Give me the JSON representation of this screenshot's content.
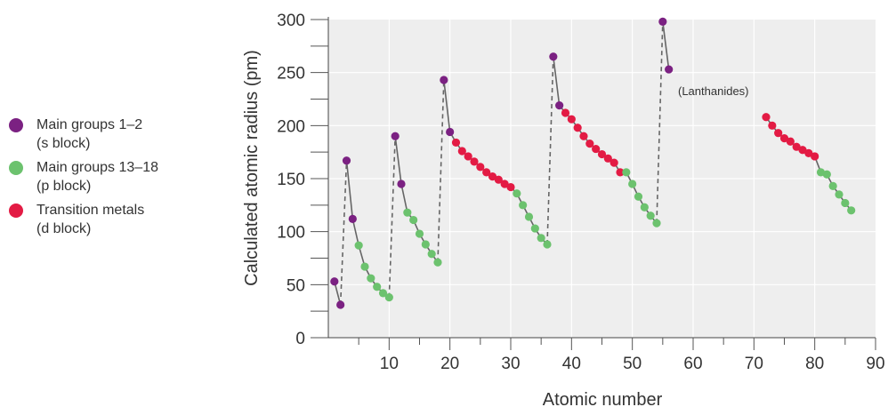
{
  "legend": [
    {
      "series": "s",
      "line1": "Main groups 1–2",
      "line2": "(s block)"
    },
    {
      "series": "p",
      "line1": "Main groups 13–18",
      "line2": "(p block)"
    },
    {
      "series": "d",
      "line1": "Transition metals",
      "line2": "(d block)"
    }
  ],
  "chart_data": {
    "type": "scatter",
    "xlabel": "Atomic number",
    "ylabel": "Calculated atomic radius (pm)",
    "xlim": [
      0,
      90
    ],
    "ylim": [
      0,
      300
    ],
    "xticks": [
      10,
      20,
      30,
      40,
      50,
      60,
      70,
      80,
      90
    ],
    "yticks": [
      0,
      50,
      100,
      150,
      200,
      250,
      300
    ],
    "grid": true,
    "annotation": "(Lanthanides)",
    "colors": {
      "s": "#7b2182",
      "p": "#6cc26e",
      "d": "#e31b44"
    },
    "points": [
      [
        1,
        53,
        "s"
      ],
      [
        2,
        31,
        "s"
      ],
      [
        3,
        167,
        "s"
      ],
      [
        4,
        112,
        "s"
      ],
      [
        5,
        87,
        "p"
      ],
      [
        6,
        67,
        "p"
      ],
      [
        7,
        56,
        "p"
      ],
      [
        8,
        48,
        "p"
      ],
      [
        9,
        42,
        "p"
      ],
      [
        10,
        38,
        "p"
      ],
      [
        11,
        190,
        "s"
      ],
      [
        12,
        145,
        "s"
      ],
      [
        13,
        118,
        "p"
      ],
      [
        14,
        111,
        "p"
      ],
      [
        15,
        98,
        "p"
      ],
      [
        16,
        88,
        "p"
      ],
      [
        17,
        79,
        "p"
      ],
      [
        18,
        71,
        "p"
      ],
      [
        19,
        243,
        "s"
      ],
      [
        20,
        194,
        "s"
      ],
      [
        21,
        184,
        "d"
      ],
      [
        22,
        176,
        "d"
      ],
      [
        23,
        171,
        "d"
      ],
      [
        24,
        166,
        "d"
      ],
      [
        25,
        161,
        "d"
      ],
      [
        26,
        156,
        "d"
      ],
      [
        27,
        152,
        "d"
      ],
      [
        28,
        149,
        "d"
      ],
      [
        29,
        145,
        "d"
      ],
      [
        30,
        142,
        "d"
      ],
      [
        31,
        136,
        "p"
      ],
      [
        32,
        125,
        "p"
      ],
      [
        33,
        114,
        "p"
      ],
      [
        34,
        103,
        "p"
      ],
      [
        35,
        94,
        "p"
      ],
      [
        36,
        88,
        "p"
      ],
      [
        37,
        265,
        "s"
      ],
      [
        38,
        219,
        "s"
      ],
      [
        39,
        212,
        "d"
      ],
      [
        40,
        206,
        "d"
      ],
      [
        41,
        198,
        "d"
      ],
      [
        42,
        190,
        "d"
      ],
      [
        43,
        183,
        "d"
      ],
      [
        44,
        178,
        "d"
      ],
      [
        45,
        173,
        "d"
      ],
      [
        46,
        169,
        "d"
      ],
      [
        47,
        165,
        "d"
      ],
      [
        48,
        156,
        "d"
      ],
      [
        49,
        156,
        "p"
      ],
      [
        50,
        145,
        "p"
      ],
      [
        51,
        133,
        "p"
      ],
      [
        52,
        123,
        "p"
      ],
      [
        53,
        115,
        "p"
      ],
      [
        54,
        108,
        "p"
      ],
      [
        55,
        298,
        "s"
      ],
      [
        56,
        253,
        "s"
      ],
      [
        72,
        208,
        "d"
      ],
      [
        73,
        200,
        "d"
      ],
      [
        74,
        193,
        "d"
      ],
      [
        75,
        188,
        "d"
      ],
      [
        76,
        185,
        "d"
      ],
      [
        77,
        180,
        "d"
      ],
      [
        78,
        177,
        "d"
      ],
      [
        79,
        174,
        "d"
      ],
      [
        80,
        171,
        "d"
      ],
      [
        81,
        156,
        "p"
      ],
      [
        82,
        154,
        "p"
      ],
      [
        83,
        143,
        "p"
      ],
      [
        84,
        135,
        "p"
      ],
      [
        85,
        127,
        "p"
      ],
      [
        86,
        120,
        "p"
      ]
    ],
    "solid_segments": [
      [
        1,
        2
      ],
      [
        3,
        10
      ],
      [
        11,
        18
      ],
      [
        19,
        36
      ],
      [
        37,
        54
      ],
      [
        55,
        56
      ],
      [
        72,
        86
      ]
    ],
    "dashed_connectors": [
      [
        2,
        3
      ],
      [
        10,
        11
      ],
      [
        18,
        19
      ],
      [
        36,
        37
      ],
      [
        54,
        55
      ]
    ]
  }
}
